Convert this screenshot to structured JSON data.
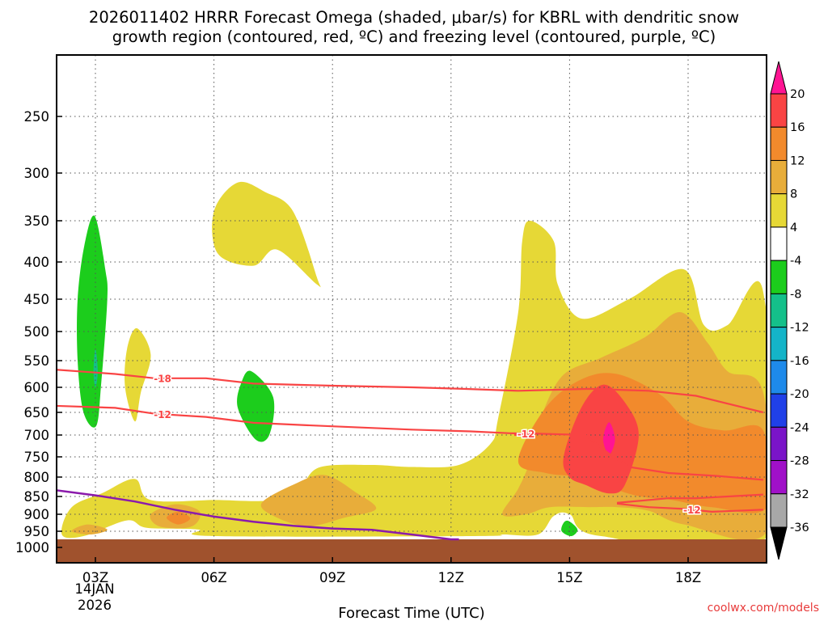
{
  "chart_data": {
    "type": "time-height cross-section",
    "title_line1": "2026011402 HRRR Forecast Omega (shaded, μbar/s) for KBRL with dendritic snow",
    "title_line2": "growth region (contoured, red, ºC) and freezing level (contoured, purple, ºC)",
    "xlabel": "Forecast Time (UTC)",
    "x_ticks": [
      {
        "hour": 3,
        "label": "03Z"
      },
      {
        "hour": 6,
        "label": "06Z"
      },
      {
        "hour": 9,
        "label": "09Z"
      },
      {
        "hour": 12,
        "label": "12Z"
      },
      {
        "hour": 15,
        "label": "15Z"
      },
      {
        "hour": 18,
        "label": "18Z"
      }
    ],
    "date_line1": "14JAN",
    "date_line2": "2026",
    "xlim_hours": [
      2.0,
      19.6
    ],
    "y_unit": "mb",
    "y_ticks": [
      250,
      300,
      350,
      400,
      450,
      500,
      550,
      600,
      650,
      700,
      750,
      800,
      850,
      900,
      950,
      1000
    ],
    "ylim_mb": [
      200,
      1000
    ],
    "surface_pressure_mb": 975,
    "colorbar": {
      "levels": [
        "20",
        "16",
        "12",
        "8",
        "4",
        "-4",
        "-8",
        "-12",
        "-16",
        "-20",
        "-24",
        "-28",
        "-32",
        "-36"
      ],
      "colors": [
        "#ff1493",
        "#f94444",
        "#f28a2c",
        "#e8ad3a",
        "#e6d836",
        "#ffffff",
        "#1ccd1c",
        "#14c08a",
        "#14b4c8",
        "#1e8aea",
        "#2040e8",
        "#7a14c8",
        "#a010c8",
        "#a8a8a8",
        "#000000"
      ]
    },
    "omega_regions": [
      {
        "value_range": "-8 to -4",
        "color": "#1ccd1c",
        "points": [
          [
            2.98,
            345
          ],
          [
            3.25,
            410
          ],
          [
            3.3,
            450
          ],
          [
            3.15,
            590
          ],
          [
            3.02,
            680
          ],
          [
            2.7,
            650
          ],
          [
            2.55,
            550
          ],
          [
            2.55,
            450
          ],
          [
            2.72,
            380
          ]
        ]
      },
      {
        "value_range": "-8 to -4",
        "color": "#1ccd1c",
        "points": [
          [
            6.95,
            570
          ],
          [
            7.5,
            620
          ],
          [
            7.4,
            700
          ],
          [
            7.05,
            710
          ],
          [
            6.6,
            640
          ],
          [
            6.7,
            590
          ]
        ]
      },
      {
        "value_range": "-8 to -4",
        "color": "#1ccd1c",
        "points": [
          [
            14.98,
            920
          ],
          [
            15.2,
            945
          ],
          [
            15.05,
            965
          ],
          [
            14.8,
            950
          ],
          [
            14.85,
            925
          ]
        ]
      },
      {
        "value_range": "-12 to -8",
        "color": "#14c08a",
        "points": [
          [
            3.0,
            530
          ],
          [
            3.06,
            570
          ],
          [
            3.0,
            600
          ],
          [
            2.95,
            570
          ]
        ]
      },
      {
        "value_range": "4 to 8",
        "color": "#e6d836",
        "points": [
          [
            2.15,
            960
          ],
          [
            2.4,
            880
          ],
          [
            3.2,
            840
          ],
          [
            4.0,
            805
          ],
          [
            4.4,
            860
          ],
          [
            6.0,
            860
          ],
          [
            7.5,
            860
          ],
          [
            8.2,
            820
          ],
          [
            8.7,
            775
          ],
          [
            10,
            770
          ],
          [
            11,
            775
          ],
          [
            12.2,
            770
          ],
          [
            13,
            720
          ],
          [
            13.2,
            660
          ],
          [
            13.7,
            470
          ],
          [
            13.8,
            375
          ],
          [
            14.0,
            350
          ],
          [
            14.6,
            375
          ],
          [
            14.7,
            430
          ],
          [
            15.3,
            480
          ],
          [
            16.5,
            450
          ],
          [
            17.9,
            410
          ],
          [
            18.4,
            490
          ],
          [
            19.0,
            490
          ],
          [
            19.9,
            440
          ],
          [
            20,
            965
          ],
          [
            15.8,
            965
          ],
          [
            15.0,
            900
          ],
          [
            14.6,
            905
          ],
          [
            14.2,
            960
          ],
          [
            13.3,
            960
          ],
          [
            12.6,
            965
          ],
          [
            6.0,
            965
          ],
          [
            5.6,
            945
          ],
          [
            4.3,
            940
          ],
          [
            3.8,
            918
          ],
          [
            2.7,
            965
          ]
        ]
      },
      {
        "value_range": "4 to 8",
        "color": "#e6d836",
        "points": [
          [
            6.0,
            340
          ],
          [
            6.6,
            310
          ],
          [
            7.3,
            320
          ],
          [
            8.0,
            340
          ],
          [
            8.6,
            420
          ],
          [
            8.6,
            430
          ],
          [
            7.6,
            385
          ],
          [
            7.0,
            405
          ],
          [
            6.1,
            390
          ]
        ]
      },
      {
        "value_range": "4 to 8",
        "color": "#e6d836",
        "points": [
          [
            4.05,
            495
          ],
          [
            4.4,
            540
          ],
          [
            4.15,
            610
          ],
          [
            4.0,
            670
          ],
          [
            3.75,
            600
          ],
          [
            3.8,
            530
          ]
        ]
      },
      {
        "value_range": "8 to 12",
        "color": "#e8ad3a",
        "points": [
          [
            13.3,
            900
          ],
          [
            13.7,
            830
          ],
          [
            14.0,
            760
          ],
          [
            14.2,
            680
          ],
          [
            14.8,
            580
          ],
          [
            15.8,
            545
          ],
          [
            16.9,
            510
          ],
          [
            17.8,
            470
          ],
          [
            18.5,
            520
          ],
          [
            19.0,
            570
          ],
          [
            19.9,
            610
          ],
          [
            20,
            950
          ],
          [
            17.9,
            930
          ],
          [
            17.0,
            890
          ],
          [
            16.2,
            880
          ],
          [
            15.5,
            880
          ],
          [
            14.5,
            880
          ],
          [
            13.9,
            900
          ]
        ]
      },
      {
        "value_range": "8 to 12",
        "color": "#e8ad3a",
        "points": [
          [
            2.4,
            950
          ],
          [
            2.8,
            930
          ],
          [
            3.3,
            945
          ],
          [
            2.9,
            960
          ]
        ]
      },
      {
        "value_range": "8 to 12",
        "color": "#e8ad3a",
        "points": [
          [
            4.4,
            900
          ],
          [
            5.0,
            872
          ],
          [
            5.6,
            888
          ],
          [
            5.6,
            920
          ],
          [
            5.3,
            940
          ],
          [
            4.6,
            935
          ]
        ]
      },
      {
        "value_range": "8 to 12",
        "color": "#e8ad3a",
        "points": [
          [
            7.2,
            870
          ],
          [
            8.0,
            820
          ],
          [
            8.8,
            795
          ],
          [
            9.6,
            840
          ],
          [
            10.1,
            885
          ],
          [
            9.3,
            910
          ],
          [
            8.4,
            935
          ],
          [
            7.6,
            910
          ]
        ]
      },
      {
        "value_range": "12 to 16",
        "color": "#f28a2c",
        "points": [
          [
            13.7,
            760
          ],
          [
            14.4,
            640
          ],
          [
            15.3,
            585
          ],
          [
            16.2,
            575
          ],
          [
            17.3,
            615
          ],
          [
            18.0,
            670
          ],
          [
            18.9,
            690
          ],
          [
            19.9,
            690
          ],
          [
            20,
            880
          ],
          [
            18.6,
            880
          ],
          [
            17.6,
            860
          ],
          [
            16.8,
            850
          ],
          [
            16.1,
            830
          ],
          [
            15.2,
            800
          ],
          [
            14.4,
            790
          ]
        ]
      },
      {
        "value_range": "12 to 16",
        "color": "#f28a2c",
        "points": [
          [
            4.8,
            910
          ],
          [
            5.1,
            893
          ],
          [
            5.4,
            912
          ],
          [
            5.1,
            930
          ]
        ]
      },
      {
        "value_range": "16 to 20",
        "color": "#f94444",
        "points": [
          [
            15.3,
            640
          ],
          [
            15.85,
            595
          ],
          [
            16.4,
            630
          ],
          [
            16.75,
            700
          ],
          [
            16.4,
            820
          ],
          [
            16.0,
            842
          ],
          [
            15.4,
            820
          ],
          [
            15.0,
            800
          ],
          [
            14.85,
            750
          ]
        ]
      },
      {
        "value_range": ">20",
        "color": "#ff1493",
        "points": [
          [
            16.0,
            672
          ],
          [
            16.15,
            710
          ],
          [
            16.0,
            745
          ],
          [
            15.85,
            710
          ]
        ]
      }
    ],
    "dgz_contours": [
      {
        "value": -18,
        "label": "-18",
        "color": "#f94444",
        "label_hour": 4.7,
        "points": [
          [
            2.0,
            567
          ],
          [
            3.5,
            575
          ],
          [
            4.5,
            583
          ],
          [
            5.8,
            583
          ],
          [
            7.0,
            593
          ],
          [
            9,
            597
          ],
          [
            11,
            600
          ],
          [
            12.3,
            603
          ],
          [
            13.7,
            607
          ],
          [
            15.5,
            603
          ],
          [
            17,
            607
          ],
          [
            18.2,
            617
          ],
          [
            19.9,
            650
          ]
        ]
      },
      {
        "value": -12,
        "label": "-12",
        "color": "#f94444",
        "label_hour": 4.7,
        "points": [
          [
            2.0,
            637
          ],
          [
            3.5,
            641
          ],
          [
            4.5,
            653
          ],
          [
            5.8,
            660
          ],
          [
            7.0,
            673
          ],
          [
            8.5,
            679
          ],
          [
            11,
            688
          ],
          [
            12.5,
            692
          ],
          [
            13.5,
            696
          ],
          [
            14.2,
            697
          ],
          [
            15.4,
            700
          ],
          [
            16.0,
            743
          ],
          [
            16.5,
            775
          ],
          [
            17.5,
            790
          ],
          [
            18.7,
            797
          ],
          [
            19.9,
            807
          ]
        ]
      },
      {
        "value": -12,
        "label": "-12",
        "color": "#f94444",
        "label_hour": 13.9,
        "points": [
          [
            13.6,
            700
          ],
          [
            14.0,
            697
          ],
          [
            14.2,
            697
          ]
        ]
      },
      {
        "value": -12,
        "label": "-12",
        "color": "#f94444",
        "label_hour": 18.1,
        "points": [
          [
            16.2,
            870
          ],
          [
            17.0,
            880
          ],
          [
            17.9,
            885
          ],
          [
            18.6,
            893
          ],
          [
            19.9,
            887
          ]
        ]
      },
      {
        "value": -12,
        "label": "",
        "color": "#f94444",
        "label_hour": null,
        "points": [
          [
            16.2,
            868
          ],
          [
            17.5,
            855
          ],
          [
            18.2,
            855
          ],
          [
            19.9,
            845
          ]
        ]
      }
    ],
    "freezing_level": {
      "value": 0,
      "color": "#8b1aab",
      "points": [
        [
          2.0,
          834
        ],
        [
          3.0,
          847
        ],
        [
          4.0,
          864
        ],
        [
          5.0,
          887
        ],
        [
          6.0,
          907
        ],
        [
          7.0,
          922
        ],
        [
          8.0,
          934
        ],
        [
          9.0,
          942
        ],
        [
          10.0,
          946
        ],
        [
          11.0,
          960
        ],
        [
          12.0,
          975
        ],
        [
          12.2,
          975
        ]
      ]
    }
  },
  "credit": "coolwx.com/models"
}
